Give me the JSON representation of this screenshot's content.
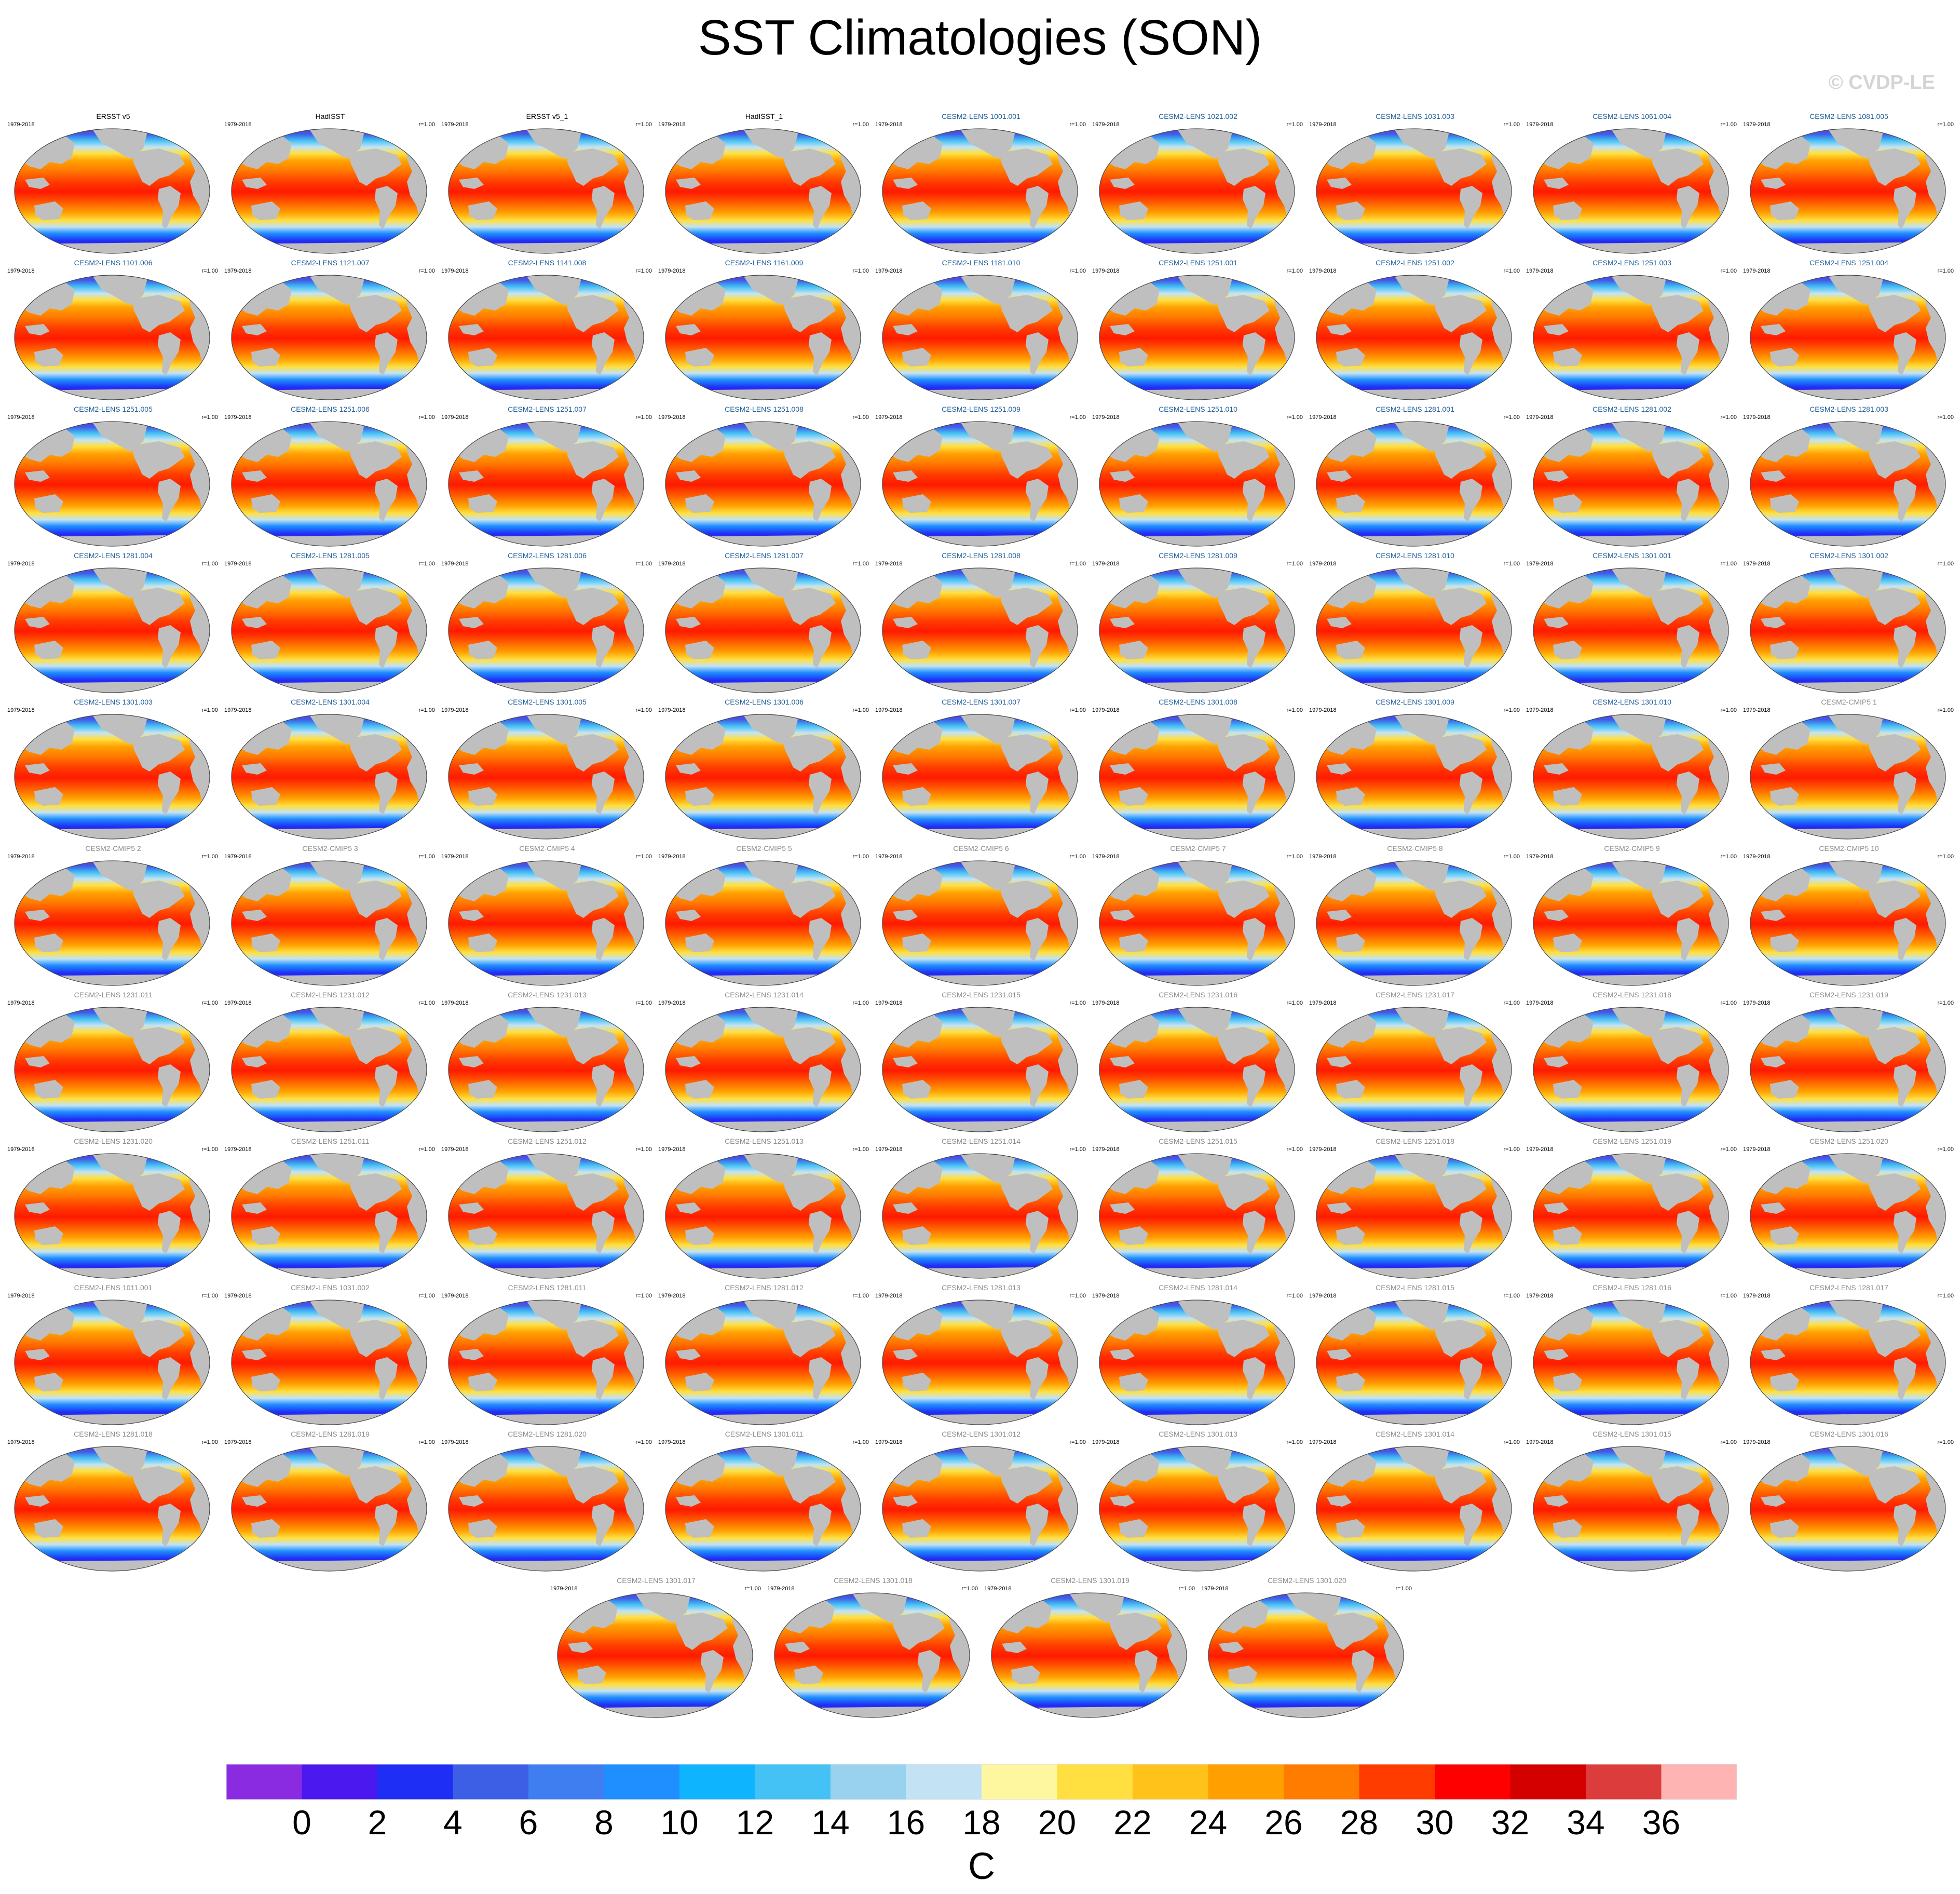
{
  "figure_title": "SST Climatologies (SON)",
  "watermark": "© CVDP-LE",
  "colors": {
    "title_obs": "#000000",
    "title_lens_a": "#1f5f9a",
    "title_lens_b": "#8c8c8c",
    "land": "#bfbfbf"
  },
  "chart_data": {
    "type": "heatmap",
    "description_units": "C",
    "colorbar": {
      "ticks": [
        "0",
        "2",
        "4",
        "6",
        "8",
        "10",
        "12",
        "14",
        "16",
        "18",
        "20",
        "22",
        "24",
        "26",
        "28",
        "30",
        "32",
        "34",
        "36"
      ],
      "units": "C",
      "colors": [
        "#8a2be2",
        "#4b19f0",
        "#1e2ef5",
        "#3c5fe6",
        "#3f7ef0",
        "#1f8fff",
        "#0fb4ff",
        "#45c2f5",
        "#98d2ee",
        "#c3e3f5",
        "#fff7a0",
        "#ffe040",
        "#ffc21a",
        "#ffa000",
        "#ff7c00",
        "#ff3c00",
        "#ff0000",
        "#d40000",
        "#dc3c3c",
        "#ffb4b4"
      ]
    },
    "panels": [
      {
        "title": "ERSST v5",
        "period": "1979-2018",
        "r": "",
        "group": "obs"
      },
      {
        "title": "HadISST",
        "period": "1979-2018",
        "r": "r=1.00",
        "group": "obs"
      },
      {
        "title": "ERSST v5_1",
        "period": "1979-2018",
        "r": "r=1.00",
        "group": "obs"
      },
      {
        "title": "HadISST_1",
        "period": "1979-2018",
        "r": "r=1.00",
        "group": "obs"
      },
      {
        "title": "CESM2-LENS 1001.001",
        "period": "1979-2018",
        "r": "r=1.00",
        "group": "a"
      },
      {
        "title": "CESM2-LENS 1021.002",
        "period": "1979-2018",
        "r": "r=1.00",
        "group": "a"
      },
      {
        "title": "CESM2-LENS 1031.003",
        "period": "1979-2018",
        "r": "r=1.00",
        "group": "a"
      },
      {
        "title": "CESM2-LENS 1061.004",
        "period": "1979-2018",
        "r": "r=1.00",
        "group": "a"
      },
      {
        "title": "CESM2-LENS 1081.005",
        "period": "1979-2018",
        "r": "r=1.00",
        "group": "a"
      },
      {
        "title": "CESM2-LENS 1101.006",
        "period": "1979-2018",
        "r": "r=1.00",
        "group": "a"
      },
      {
        "title": "CESM2-LENS 1121.007",
        "period": "1979-2018",
        "r": "r=1.00",
        "group": "a"
      },
      {
        "title": "CESM2-LENS 1141.008",
        "period": "1979-2018",
        "r": "r=1.00",
        "group": "a"
      },
      {
        "title": "CESM2-LENS 1161.009",
        "period": "1979-2018",
        "r": "r=1.00",
        "group": "a"
      },
      {
        "title": "CESM2-LENS 1181.010",
        "period": "1979-2018",
        "r": "r=1.00",
        "group": "a"
      },
      {
        "title": "CESM2-LENS 1251.001",
        "period": "1979-2018",
        "r": "r=1.00",
        "group": "a"
      },
      {
        "title": "CESM2-LENS 1251.002",
        "period": "1979-2018",
        "r": "r=1.00",
        "group": "a"
      },
      {
        "title": "CESM2-LENS 1251.003",
        "period": "1979-2018",
        "r": "r=1.00",
        "group": "a"
      },
      {
        "title": "CESM2-LENS 1251.004",
        "period": "1979-2018",
        "r": "r=1.00",
        "group": "a"
      },
      {
        "title": "CESM2-LENS 1251.005",
        "period": "1979-2018",
        "r": "r=1.00",
        "group": "a"
      },
      {
        "title": "CESM2-LENS 1251.006",
        "period": "1979-2018",
        "r": "r=1.00",
        "group": "a"
      },
      {
        "title": "CESM2-LENS 1251.007",
        "period": "1979-2018",
        "r": "r=1.00",
        "group": "a"
      },
      {
        "title": "CESM2-LENS 1251.008",
        "period": "1979-2018",
        "r": "r=1.00",
        "group": "a"
      },
      {
        "title": "CESM2-LENS 1251.009",
        "period": "1979-2018",
        "r": "r=1.00",
        "group": "a"
      },
      {
        "title": "CESM2-LENS 1251.010",
        "period": "1979-2018",
        "r": "r=1.00",
        "group": "a"
      },
      {
        "title": "CESM2-LENS 1281.001",
        "period": "1979-2018",
        "r": "r=1.00",
        "group": "a"
      },
      {
        "title": "CESM2-LENS 1281.002",
        "period": "1979-2018",
        "r": "r=1.00",
        "group": "a"
      },
      {
        "title": "CESM2-LENS 1281.003",
        "period": "1979-2018",
        "r": "r=1.00",
        "group": "a"
      },
      {
        "title": "CESM2-LENS 1281.004",
        "period": "1979-2018",
        "r": "r=1.00",
        "group": "a"
      },
      {
        "title": "CESM2-LENS 1281.005",
        "period": "1979-2018",
        "r": "r=1.00",
        "group": "a"
      },
      {
        "title": "CESM2-LENS 1281.006",
        "period": "1979-2018",
        "r": "r=1.00",
        "group": "a"
      },
      {
        "title": "CESM2-LENS 1281.007",
        "period": "1979-2018",
        "r": "r=1.00",
        "group": "a"
      },
      {
        "title": "CESM2-LENS 1281.008",
        "period": "1979-2018",
        "r": "r=1.00",
        "group": "a"
      },
      {
        "title": "CESM2-LENS 1281.009",
        "period": "1979-2018",
        "r": "r=1.00",
        "group": "a"
      },
      {
        "title": "CESM2-LENS 1281.010",
        "period": "1979-2018",
        "r": "r=1.00",
        "group": "a"
      },
      {
        "title": "CESM2-LENS 1301.001",
        "period": "1979-2018",
        "r": "r=1.00",
        "group": "a"
      },
      {
        "title": "CESM2-LENS 1301.002",
        "period": "1979-2018",
        "r": "r=1.00",
        "group": "a"
      },
      {
        "title": "CESM2-LENS 1301.003",
        "period": "1979-2018",
        "r": "r=1.00",
        "group": "a"
      },
      {
        "title": "CESM2-LENS 1301.004",
        "period": "1979-2018",
        "r": "r=1.00",
        "group": "a"
      },
      {
        "title": "CESM2-LENS 1301.005",
        "period": "1979-2018",
        "r": "r=1.00",
        "group": "a"
      },
      {
        "title": "CESM2-LENS 1301.006",
        "period": "1979-2018",
        "r": "r=1.00",
        "group": "a"
      },
      {
        "title": "CESM2-LENS 1301.007",
        "period": "1979-2018",
        "r": "r=1.00",
        "group": "a"
      },
      {
        "title": "CESM2-LENS 1301.008",
        "period": "1979-2018",
        "r": "r=1.00",
        "group": "a"
      },
      {
        "title": "CESM2-LENS 1301.009",
        "period": "1979-2018",
        "r": "r=1.00",
        "group": "a"
      },
      {
        "title": "CESM2-LENS 1301.010",
        "period": "1979-2018",
        "r": "r=1.00",
        "group": "a"
      },
      {
        "title": "CESM2-CMIP5 1",
        "period": "1979-2018",
        "r": "r=1.00",
        "group": "b"
      },
      {
        "title": "CESM2-CMIP5 2",
        "period": "1979-2018",
        "r": "r=1.00",
        "group": "b"
      },
      {
        "title": "CESM2-CMIP5 3",
        "period": "1979-2018",
        "r": "r=1.00",
        "group": "b"
      },
      {
        "title": "CESM2-CMIP5 4",
        "period": "1979-2018",
        "r": "r=1.00",
        "group": "b"
      },
      {
        "title": "CESM2-CMIP5 5",
        "period": "1979-2018",
        "r": "r=1.00",
        "group": "b"
      },
      {
        "title": "CESM2-CMIP5 6",
        "period": "1979-2018",
        "r": "r=1.00",
        "group": "b"
      },
      {
        "title": "CESM2-CMIP5 7",
        "period": "1979-2018",
        "r": "r=1.00",
        "group": "b"
      },
      {
        "title": "CESM2-CMIP5 8",
        "period": "1979-2018",
        "r": "r=1.00",
        "group": "b"
      },
      {
        "title": "CESM2-CMIP5 9",
        "period": "1979-2018",
        "r": "r=1.00",
        "group": "b"
      },
      {
        "title": "CESM2-CMIP5 10",
        "period": "1979-2018",
        "r": "r=1.00",
        "group": "b"
      },
      {
        "title": "CESM2-LENS 1231.011",
        "period": "1979-2018",
        "r": "r=1.00",
        "group": "b"
      },
      {
        "title": "CESM2-LENS 1231.012",
        "period": "1979-2018",
        "r": "r=1.00",
        "group": "b"
      },
      {
        "title": "CESM2-LENS 1231.013",
        "period": "1979-2018",
        "r": "r=1.00",
        "group": "b"
      },
      {
        "title": "CESM2-LENS 1231.014",
        "period": "1979-2018",
        "r": "r=1.00",
        "group": "b"
      },
      {
        "title": "CESM2-LENS 1231.015",
        "period": "1979-2018",
        "r": "r=1.00",
        "group": "b"
      },
      {
        "title": "CESM2-LENS 1231.016",
        "period": "1979-2018",
        "r": "r=1.00",
        "group": "b"
      },
      {
        "title": "CESM2-LENS 1231.017",
        "period": "1979-2018",
        "r": "r=1.00",
        "group": "b"
      },
      {
        "title": "CESM2-LENS 1231.018",
        "period": "1979-2018",
        "r": "r=1.00",
        "group": "b"
      },
      {
        "title": "CESM2-LENS 1231.019",
        "period": "1979-2018",
        "r": "r=1.00",
        "group": "b"
      },
      {
        "title": "CESM2-LENS 1231.020",
        "period": "1979-2018",
        "r": "r=1.00",
        "group": "b"
      },
      {
        "title": "CESM2-LENS 1251.011",
        "period": "1979-2018",
        "r": "r=1.00",
        "group": "b"
      },
      {
        "title": "CESM2-LENS 1251.012",
        "period": "1979-2018",
        "r": "r=1.00",
        "group": "b"
      },
      {
        "title": "CESM2-LENS 1251.013",
        "period": "1979-2018",
        "r": "r=1.00",
        "group": "b"
      },
      {
        "title": "CESM2-LENS 1251.014",
        "period": "1979-2018",
        "r": "r=1.00",
        "group": "b"
      },
      {
        "title": "CESM2-LENS 1251.015",
        "period": "1979-2018",
        "r": "r=1.00",
        "group": "b"
      },
      {
        "title": "CESM2-LENS 1251.018",
        "period": "1979-2018",
        "r": "r=1.00",
        "group": "b"
      },
      {
        "title": "CESM2-LENS 1251.019",
        "period": "1979-2018",
        "r": "r=1.00",
        "group": "b"
      },
      {
        "title": "CESM2-LENS 1251.020",
        "period": "1979-2018",
        "r": "r=1.00",
        "group": "b"
      },
      {
        "title": "CESM2-LENS 1011.001",
        "period": "1979-2018",
        "r": "r=1.00",
        "group": "b"
      },
      {
        "title": "CESM2-LENS 1031.002",
        "period": "1979-2018",
        "r": "r=1.00",
        "group": "b"
      },
      {
        "title": "CESM2-LENS 1281.011",
        "period": "1979-2018",
        "r": "r=1.00",
        "group": "b"
      },
      {
        "title": "CESM2-LENS 1281.012",
        "period": "1979-2018",
        "r": "r=1.00",
        "group": "b"
      },
      {
        "title": "CESM2-LENS 1281.013",
        "period": "1979-2018",
        "r": "r=1.00",
        "group": "b"
      },
      {
        "title": "CESM2-LENS 1281.014",
        "period": "1979-2018",
        "r": "r=1.00",
        "group": "b"
      },
      {
        "title": "CESM2-LENS 1281.015",
        "period": "1979-2018",
        "r": "r=1.00",
        "group": "b"
      },
      {
        "title": "CESM2-LENS 1281.016",
        "period": "1979-2018",
        "r": "r=1.00",
        "group": "b"
      },
      {
        "title": "CESM2-LENS 1281.017",
        "period": "1979-2018",
        "r": "r=1.00",
        "group": "b"
      },
      {
        "title": "CESM2-LENS 1281.018",
        "period": "1979-2018",
        "r": "r=1.00",
        "group": "b"
      },
      {
        "title": "CESM2-LENS 1281.019",
        "period": "1979-2018",
        "r": "r=1.00",
        "group": "b"
      },
      {
        "title": "CESM2-LENS 1281.020",
        "period": "1979-2018",
        "r": "r=1.00",
        "group": "b"
      },
      {
        "title": "CESM2-LENS 1301.011",
        "period": "1979-2018",
        "r": "r=1.00",
        "group": "b"
      },
      {
        "title": "CESM2-LENS 1301.012",
        "period": "1979-2018",
        "r": "r=1.00",
        "group": "b"
      },
      {
        "title": "CESM2-LENS 1301.013",
        "period": "1979-2018",
        "r": "r=1.00",
        "group": "b"
      },
      {
        "title": "CESM2-LENS 1301.014",
        "period": "1979-2018",
        "r": "r=1.00",
        "group": "b"
      },
      {
        "title": "CESM2-LENS 1301.015",
        "period": "1979-2018",
        "r": "r=1.00",
        "group": "b"
      },
      {
        "title": "CESM2-LENS 1301.016",
        "period": "1979-2018",
        "r": "r=1.00",
        "group": "b"
      },
      {
        "title": "CESM2-LENS 1301.017",
        "period": "1979-2018",
        "r": "r=1.00",
        "group": "b"
      },
      {
        "title": "CESM2-LENS 1301.018",
        "period": "1979-2018",
        "r": "r=1.00",
        "group": "b"
      },
      {
        "title": "CESM2-LENS 1301.019",
        "period": "1979-2018",
        "r": "r=1.00",
        "group": "b"
      },
      {
        "title": "CESM2-LENS 1301.020",
        "period": "1979-2018",
        "r": "r=1.00",
        "group": "b"
      }
    ]
  }
}
